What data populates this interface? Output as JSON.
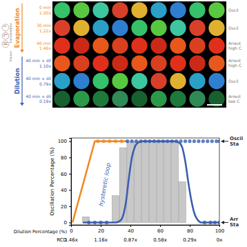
{
  "image_panel": {
    "icon_labels": [
      "Diluted",
      "Concentrated"
    ],
    "phases": [
      {
        "label": "Evaporation",
        "color": "#f08a24",
        "rows": [
          {
            "time": "0 min",
            "rcd": "1.00x",
            "status": [
              "Oscil"
            ]
          },
          {
            "time": "30 min",
            "rcd": "1.22x",
            "status": [
              "Oscil"
            ]
          },
          {
            "time": "40 min",
            "rcd": "1.46x",
            "status": [
              "Arrest",
              "high C"
            ]
          }
        ]
      },
      {
        "label": "Dilution",
        "color": "#3a5fb0",
        "rows": [
          {
            "time": "40 min + dil",
            "rcd": "1.10x",
            "status": [
              "Arrest",
              "high C"
            ]
          },
          {
            "time": "40 min + dil",
            "rcd": "0.79x",
            "status": [
              "Oscil"
            ]
          },
          {
            "time": "40 min + dil",
            "rcd": "0.19x",
            "status": [
              "Arrest",
              "low C"
            ]
          }
        ]
      }
    ]
  },
  "chart_data": {
    "type": "bar",
    "y_label": "Oscillation Percentage (%)",
    "x_label": "Dilution Percentage (%)",
    "x2_label": "RCD",
    "xlim": [
      0,
      100
    ],
    "xticks": [
      0,
      20,
      40,
      60,
      80,
      100
    ],
    "x2ticks": [
      {
        "value": 0,
        "label": "1.46x"
      },
      {
        "value": 20,
        "label": "1.16x"
      },
      {
        "value": 40,
        "label": "0.87x"
      },
      {
        "value": 60,
        "label": "0.58x"
      },
      {
        "value": 80,
        "label": "0.29x"
      },
      {
        "value": 100,
        "label": "0x"
      }
    ],
    "ylim": [
      -3,
      104
    ],
    "yticks": [
      0,
      20,
      40,
      60,
      80,
      100
    ],
    "annotation": "hysteretic loop",
    "state_labels": [
      [
        "Oscil",
        "Sta"
      ],
      [
        "Arr",
        "Sta"
      ]
    ],
    "series": [
      {
        "type": "bar",
        "color": "#c8c8c8",
        "x": [
          10,
          30,
          35,
          40,
          45,
          50,
          55,
          60,
          65,
          70,
          75
        ],
        "values": [
          7,
          33,
          92,
          100,
          100,
          100,
          100,
          100,
          100,
          100,
          50
        ]
      },
      {
        "type": "line",
        "color": "#f08a24",
        "x": [
          38,
          16,
          1
        ],
        "values": [
          100,
          100,
          0
        ]
      },
      {
        "type": "line",
        "color": "#3a5fb0",
        "x": [
          8,
          30,
          33,
          35,
          37,
          39,
          41,
          43,
          45,
          48,
          70,
          73,
          75,
          77,
          79,
          81,
          83,
          85,
          88,
          100
        ],
        "values": [
          0,
          0,
          2,
          8,
          25,
          55,
          80,
          93,
          98,
          100,
          100,
          98,
          92,
          75,
          50,
          28,
          12,
          4,
          0,
          0
        ]
      },
      {
        "type": "scatter",
        "color": "#f08a24",
        "marker": "circle",
        "x": [
          18,
          22,
          26,
          30,
          34
        ],
        "values": [
          100,
          100,
          100,
          100,
          100
        ]
      },
      {
        "type": "scatter",
        "color": "#3a5fb0",
        "marker": "circle",
        "x": [
          38,
          41,
          44,
          47,
          50,
          53,
          56,
          59,
          62,
          65,
          68,
          71,
          74,
          77,
          80,
          83,
          86,
          89,
          92,
          95,
          98,
          100,
          12,
          16,
          20,
          24,
          90,
          94,
          97,
          100
        ],
        "values": [
          100,
          100,
          100,
          100,
          100,
          100,
          100,
          100,
          100,
          100,
          100,
          100,
          100,
          100,
          100,
          100,
          100,
          100,
          100,
          100,
          100,
          100,
          0,
          0,
          0,
          0,
          0,
          0,
          0,
          0
        ]
      }
    ]
  }
}
